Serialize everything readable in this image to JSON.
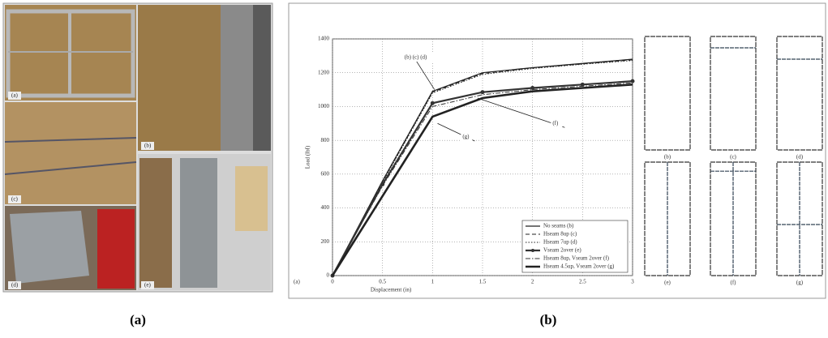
{
  "chart_data": {
    "type": "line",
    "x_label": "Displacement (in)",
    "y_label": "Load (lbf)",
    "x": [
      0,
      0.5,
      1,
      1.5,
      2,
      2.5,
      3
    ],
    "series": [
      {
        "name": "No seams (b)",
        "color": "#222222",
        "style": "solid",
        "values": [
          0,
          560,
          1090,
          1200,
          1230,
          1255,
          1280
        ]
      },
      {
        "name": "Hseam 8up (c)",
        "color": "#222222",
        "style": "dashed",
        "values": [
          0,
          555,
          1085,
          1195,
          1228,
          1252,
          1276
        ]
      },
      {
        "name": "Hseam 7up (d)",
        "color": "#222222",
        "style": "dotted",
        "values": [
          0,
          550,
          1080,
          1190,
          1225,
          1250,
          1272
        ]
      },
      {
        "name": "Vseam 2over (e)",
        "color": "#333333",
        "style": "marker",
        "values": [
          0,
          540,
          1020,
          1085,
          1110,
          1130,
          1150
        ]
      },
      {
        "name": "Hseam 8up, Vseam 2over (f)",
        "color": "#333333",
        "style": "dashdot",
        "values": [
          0,
          530,
          1000,
          1070,
          1100,
          1120,
          1140
        ]
      },
      {
        "name": "Hseam 4.5up, Vseam 2over (g)",
        "color": "#222222",
        "style": "thick",
        "values": [
          0,
          470,
          940,
          1050,
          1090,
          1110,
          1130
        ]
      }
    ],
    "xlim": [
      0,
      3
    ],
    "xticks": [
      0,
      0.5,
      1,
      1.5,
      2,
      2.5,
      3
    ],
    "ylim": [
      0,
      1400
    ],
    "yticks": [
      0,
      200,
      400,
      600,
      800,
      1000,
      1200,
      1400
    ],
    "grid": true,
    "legend": "lower right",
    "annotations": [
      "(b) (c) (d)",
      "(f)",
      "(g)",
      "(a)"
    ]
  },
  "photo_labels": [
    "(a)",
    "(b)",
    "(c)",
    "(d)",
    "(e)"
  ],
  "panel_captions": [
    "(b)",
    "(c)",
    "(d)",
    "(e)",
    "(f)",
    "(g)"
  ],
  "figure_captions": [
    "(a)",
    "(b)"
  ]
}
